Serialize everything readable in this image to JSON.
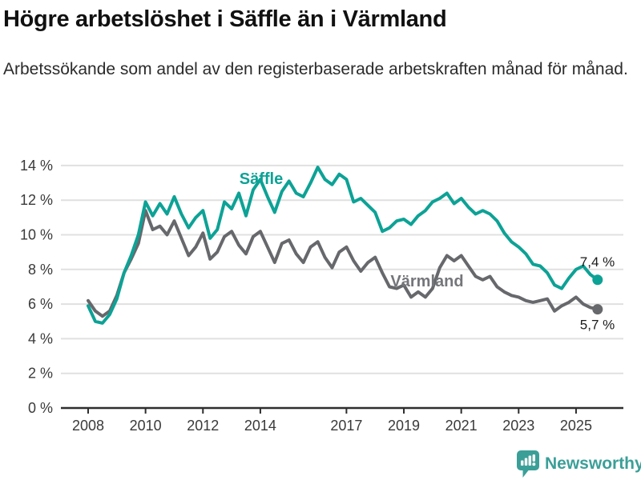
{
  "title": "Högre arbetslöshet i Säffle än i Värmland",
  "subtitle": "Arbetssökande som andel av den registerbaserade arbetskraften månad för månad.",
  "footer": {
    "brand": "Newsworthy"
  },
  "colors": {
    "saffle": "#0da296",
    "varmland": "#67686c",
    "varmland_label": "#75767a",
    "grid": "#e0e0e0",
    "axis": "#2e2e2e",
    "tick_label": "#3a3a3a",
    "annotation": "#1a1a1a",
    "brand": "#3b9f98"
  },
  "chart_data": {
    "type": "line",
    "title": "Högre arbetslöshet i Säffle än i Värmland",
    "subtitle": "Arbetssökande som andel av den registerbaserade arbetskraften månad för månad.",
    "grid": "horizontal",
    "legend_position": "inline-labels",
    "x_unit": "decimal_year",
    "xlim": [
      2007.1,
      2026.6
    ],
    "ylim": [
      0,
      14
    ],
    "x_axis": {
      "ticks": [
        {
          "year": 2008,
          "label": "2008"
        },
        {
          "year": 2010,
          "label": "2010"
        },
        {
          "year": 2012,
          "label": "2012"
        },
        {
          "year": 2014,
          "label": "2014"
        },
        {
          "year": 2017,
          "label": "2017"
        },
        {
          "year": 2019,
          "label": "2019"
        },
        {
          "year": 2021,
          "label": "2021"
        },
        {
          "year": 2023,
          "label": "2023"
        },
        {
          "year": 2025,
          "label": "2025"
        }
      ]
    },
    "y_axis": {
      "ticks": [
        {
          "value": 0,
          "label": "0 %"
        },
        {
          "value": 2,
          "label": "2 %"
        },
        {
          "value": 4,
          "label": "4 %"
        },
        {
          "value": 6,
          "label": "6 %"
        },
        {
          "value": 8,
          "label": "8 %"
        },
        {
          "value": 10,
          "label": "10 %"
        },
        {
          "value": 12,
          "label": "12 %"
        },
        {
          "value": 14,
          "label": "14 %"
        }
      ]
    },
    "series": [
      {
        "name": "Värmland",
        "color": "#67686c",
        "end_label": "5,7 %",
        "last_value": 5.7,
        "points": [
          [
            2008,
            6.2
          ],
          [
            2008.25,
            5.6
          ],
          [
            2008.5,
            5.3
          ],
          [
            2008.75,
            5.6
          ],
          [
            2009,
            6.5
          ],
          [
            2009.25,
            7.8
          ],
          [
            2009.5,
            8.6
          ],
          [
            2009.75,
            9.5
          ],
          [
            2010,
            11.4
          ],
          [
            2010.25,
            10.3
          ],
          [
            2010.5,
            10.5
          ],
          [
            2010.75,
            10
          ],
          [
            2011,
            10.8
          ],
          [
            2011.25,
            9.8
          ],
          [
            2011.5,
            8.8
          ],
          [
            2011.75,
            9.3
          ],
          [
            2012,
            10.1
          ],
          [
            2012.25,
            8.6
          ],
          [
            2012.5,
            9
          ],
          [
            2012.75,
            9.9
          ],
          [
            2013,
            10.2
          ],
          [
            2013.25,
            9.4
          ],
          [
            2013.5,
            8.9
          ],
          [
            2013.75,
            9.9
          ],
          [
            2014,
            10.2
          ],
          [
            2014.25,
            9.3
          ],
          [
            2014.5,
            8.4
          ],
          [
            2014.75,
            9.5
          ],
          [
            2015,
            9.7
          ],
          [
            2015.25,
            8.9
          ],
          [
            2015.5,
            8.4
          ],
          [
            2015.75,
            9.3
          ],
          [
            2016,
            9.6
          ],
          [
            2016.25,
            8.7
          ],
          [
            2016.5,
            8.1
          ],
          [
            2016.75,
            9
          ],
          [
            2017,
            9.3
          ],
          [
            2017.25,
            8.5
          ],
          [
            2017.5,
            7.9
          ],
          [
            2017.75,
            8.4
          ],
          [
            2018,
            8.7
          ],
          [
            2018.25,
            7.8
          ],
          [
            2018.5,
            7
          ],
          [
            2018.75,
            6.9
          ],
          [
            2019,
            7.1
          ],
          [
            2019.25,
            6.4
          ],
          [
            2019.5,
            6.7
          ],
          [
            2019.75,
            6.4
          ],
          [
            2020,
            6.9
          ],
          [
            2020.25,
            8.1
          ],
          [
            2020.5,
            8.8
          ],
          [
            2020.75,
            8.5
          ],
          [
            2021,
            8.8
          ],
          [
            2021.25,
            8.2
          ],
          [
            2021.5,
            7.6
          ],
          [
            2021.75,
            7.4
          ],
          [
            2022,
            7.6
          ],
          [
            2022.25,
            7
          ],
          [
            2022.5,
            6.7
          ],
          [
            2022.75,
            6.5
          ],
          [
            2023,
            6.4
          ],
          [
            2023.25,
            6.2
          ],
          [
            2023.5,
            6.1
          ],
          [
            2023.75,
            6.2
          ],
          [
            2024,
            6.3
          ],
          [
            2024.25,
            5.6
          ],
          [
            2024.5,
            5.9
          ],
          [
            2024.75,
            6.1
          ],
          [
            2025,
            6.4
          ],
          [
            2025.25,
            6
          ],
          [
            2025.5,
            5.8
          ],
          [
            2025.75,
            5.7
          ]
        ]
      },
      {
        "name": "Säffle",
        "color": "#0da296",
        "end_label": "7,4 %",
        "last_value": 7.4,
        "points": [
          [
            2008,
            5.9
          ],
          [
            2008.25,
            5
          ],
          [
            2008.5,
            4.9
          ],
          [
            2008.75,
            5.4
          ],
          [
            2009,
            6.3
          ],
          [
            2009.25,
            7.8
          ],
          [
            2009.5,
            8.8
          ],
          [
            2009.75,
            10
          ],
          [
            2010,
            11.9
          ],
          [
            2010.25,
            11.1
          ],
          [
            2010.5,
            11.8
          ],
          [
            2010.75,
            11.2
          ],
          [
            2011,
            12.2
          ],
          [
            2011.25,
            11.2
          ],
          [
            2011.5,
            10.4
          ],
          [
            2011.75,
            11
          ],
          [
            2012,
            11.4
          ],
          [
            2012.25,
            9.8
          ],
          [
            2012.5,
            10.3
          ],
          [
            2012.75,
            11.9
          ],
          [
            2013,
            11.5
          ],
          [
            2013.25,
            12.4
          ],
          [
            2013.5,
            11.1
          ],
          [
            2013.75,
            12.6
          ],
          [
            2014,
            13.2
          ],
          [
            2014.25,
            12.2
          ],
          [
            2014.5,
            11.3
          ],
          [
            2014.75,
            12.5
          ],
          [
            2015,
            13.1
          ],
          [
            2015.25,
            12.4
          ],
          [
            2015.5,
            12.2
          ],
          [
            2015.75,
            13
          ],
          [
            2016,
            13.9
          ],
          [
            2016.25,
            13.2
          ],
          [
            2016.5,
            12.9
          ],
          [
            2016.75,
            13.5
          ],
          [
            2017,
            13.2
          ],
          [
            2017.25,
            11.9
          ],
          [
            2017.5,
            12.1
          ],
          [
            2017.75,
            11.7
          ],
          [
            2018,
            11.3
          ],
          [
            2018.25,
            10.2
          ],
          [
            2018.5,
            10.4
          ],
          [
            2018.75,
            10.8
          ],
          [
            2019,
            10.9
          ],
          [
            2019.25,
            10.6
          ],
          [
            2019.5,
            11.1
          ],
          [
            2019.75,
            11.4
          ],
          [
            2020,
            11.9
          ],
          [
            2020.25,
            12.1
          ],
          [
            2020.5,
            12.4
          ],
          [
            2020.75,
            11.8
          ],
          [
            2021,
            12.1
          ],
          [
            2021.25,
            11.6
          ],
          [
            2021.5,
            11.2
          ],
          [
            2021.75,
            11.4
          ],
          [
            2022,
            11.2
          ],
          [
            2022.25,
            10.8
          ],
          [
            2022.5,
            10.1
          ],
          [
            2022.75,
            9.6
          ],
          [
            2023,
            9.3
          ],
          [
            2023.25,
            8.9
          ],
          [
            2023.5,
            8.3
          ],
          [
            2023.75,
            8.2
          ],
          [
            2024,
            7.8
          ],
          [
            2024.25,
            7.1
          ],
          [
            2024.5,
            6.9
          ],
          [
            2024.75,
            7.5
          ],
          [
            2025,
            8
          ],
          [
            2025.25,
            8.2
          ],
          [
            2025.5,
            7.7
          ],
          [
            2025.75,
            7.4
          ]
        ]
      }
    ]
  }
}
